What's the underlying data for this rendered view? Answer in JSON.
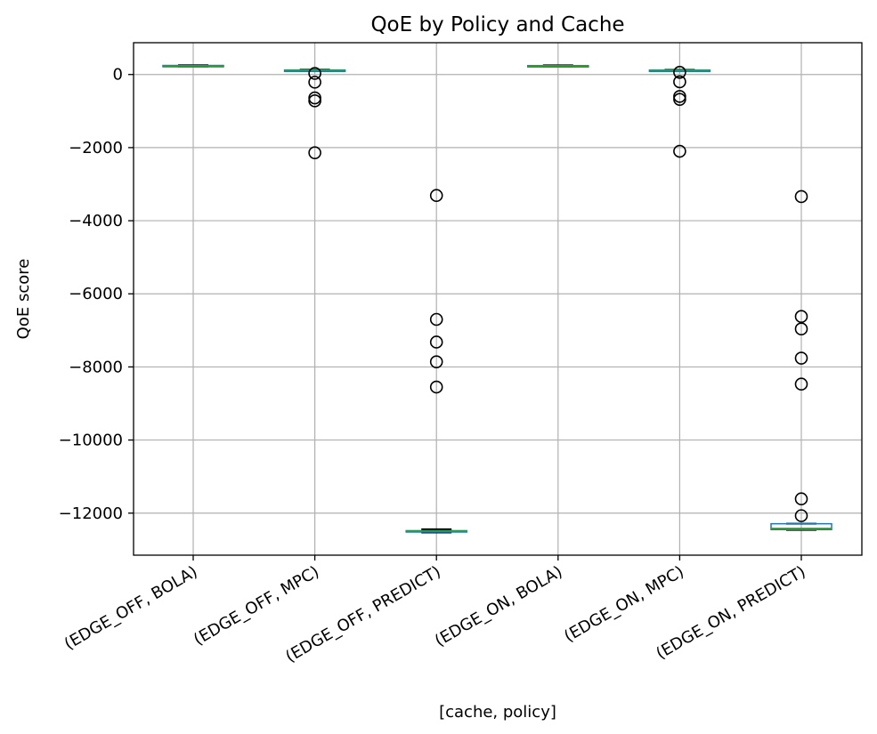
{
  "chart_data": {
    "type": "box",
    "title": "QoE by Policy and Cache",
    "xlabel": "[cache, policy]",
    "ylabel": "QoE score",
    "ylim": [
      -13150,
      870
    ],
    "yticks": [
      0,
      -2000,
      -4000,
      -6000,
      -8000,
      -10000,
      -12000
    ],
    "ytick_labels": [
      "0",
      "−2000",
      "−4000",
      "−6000",
      "−8000",
      "−10000",
      "−12000"
    ],
    "grid": true,
    "colors": {
      "box": "#1f77b4",
      "median": "#2ca02c",
      "whisker": "#000000",
      "grid": "#b0b0b0"
    },
    "categories": [
      "(EDGE_OFF, BOLA)",
      "(EDGE_OFF, MPC)",
      "(EDGE_OFF, PREDICT)",
      "(EDGE_ON, BOLA)",
      "(EDGE_ON, MPC)",
      "(EDGE_ON, PREDICT)"
    ],
    "boxes": [
      {
        "q1": 225,
        "median": 238,
        "q3": 248,
        "whislo": 218,
        "whishi": 255,
        "fliers": []
      },
      {
        "q1": 100,
        "median": 112,
        "q3": 122,
        "whislo": 90,
        "whishi": 130,
        "fliers": [
          30,
          -210,
          -640,
          -720,
          -2140
        ]
      },
      {
        "q1": -12510,
        "median": -12495,
        "q3": -12480,
        "whislo": -12530,
        "whishi": -12440,
        "fliers": [
          -3310,
          -6700,
          -7320,
          -7860,
          -8550
        ]
      },
      {
        "q1": 222,
        "median": 233,
        "q3": 244,
        "whislo": 215,
        "whishi": 252,
        "fliers": []
      },
      {
        "q1": 100,
        "median": 110,
        "q3": 120,
        "whislo": 92,
        "whishi": 128,
        "fliers": [
          60,
          -200,
          -600,
          -680,
          -2100
        ]
      },
      {
        "q1": -12450,
        "median": -12420,
        "q3": -12290,
        "whislo": -12460,
        "whishi": -12290,
        "fliers": [
          -3340,
          -6620,
          -6960,
          -7760,
          -8470,
          -11610,
          -12070
        ]
      }
    ]
  }
}
